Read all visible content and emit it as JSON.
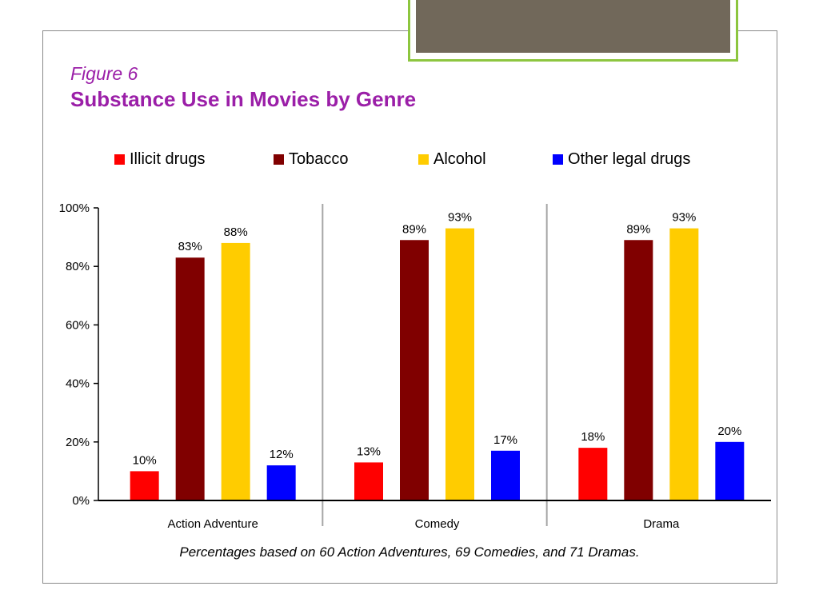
{
  "slide": {
    "figure_label": "Figure 6",
    "title": "Substance Use in Movies by Genre",
    "caption": "Percentages based on 60 Action Adventures, 69 Comedies, and 71 Dramas.",
    "title_color": "#9b1fa8"
  },
  "chart_data": {
    "type": "bar",
    "title": "Substance Use in Movies by Genre",
    "xlabel": "",
    "ylabel": "",
    "ylim": [
      0,
      100
    ],
    "yticks": [
      "0%",
      "20%",
      "40%",
      "60%",
      "80%",
      "100%"
    ],
    "y_tick_values": [
      0,
      20,
      40,
      60,
      80,
      100
    ],
    "value_suffix": "%",
    "categories": [
      "Action Adventure",
      "Comedy",
      "Drama"
    ],
    "legend_placement": "top",
    "grid": false,
    "series": [
      {
        "name": "Illicit drugs",
        "color": "#ff0000",
        "values": [
          10,
          13,
          18
        ]
      },
      {
        "name": "Tobacco",
        "color": "#800000",
        "values": [
          83,
          89,
          89
        ]
      },
      {
        "name": "Alcohol",
        "color": "#ffcc00",
        "values": [
          88,
          93,
          93
        ]
      },
      {
        "name": "Other legal drugs",
        "color": "#0000ff",
        "values": [
          12,
          17,
          20
        ]
      }
    ]
  }
}
